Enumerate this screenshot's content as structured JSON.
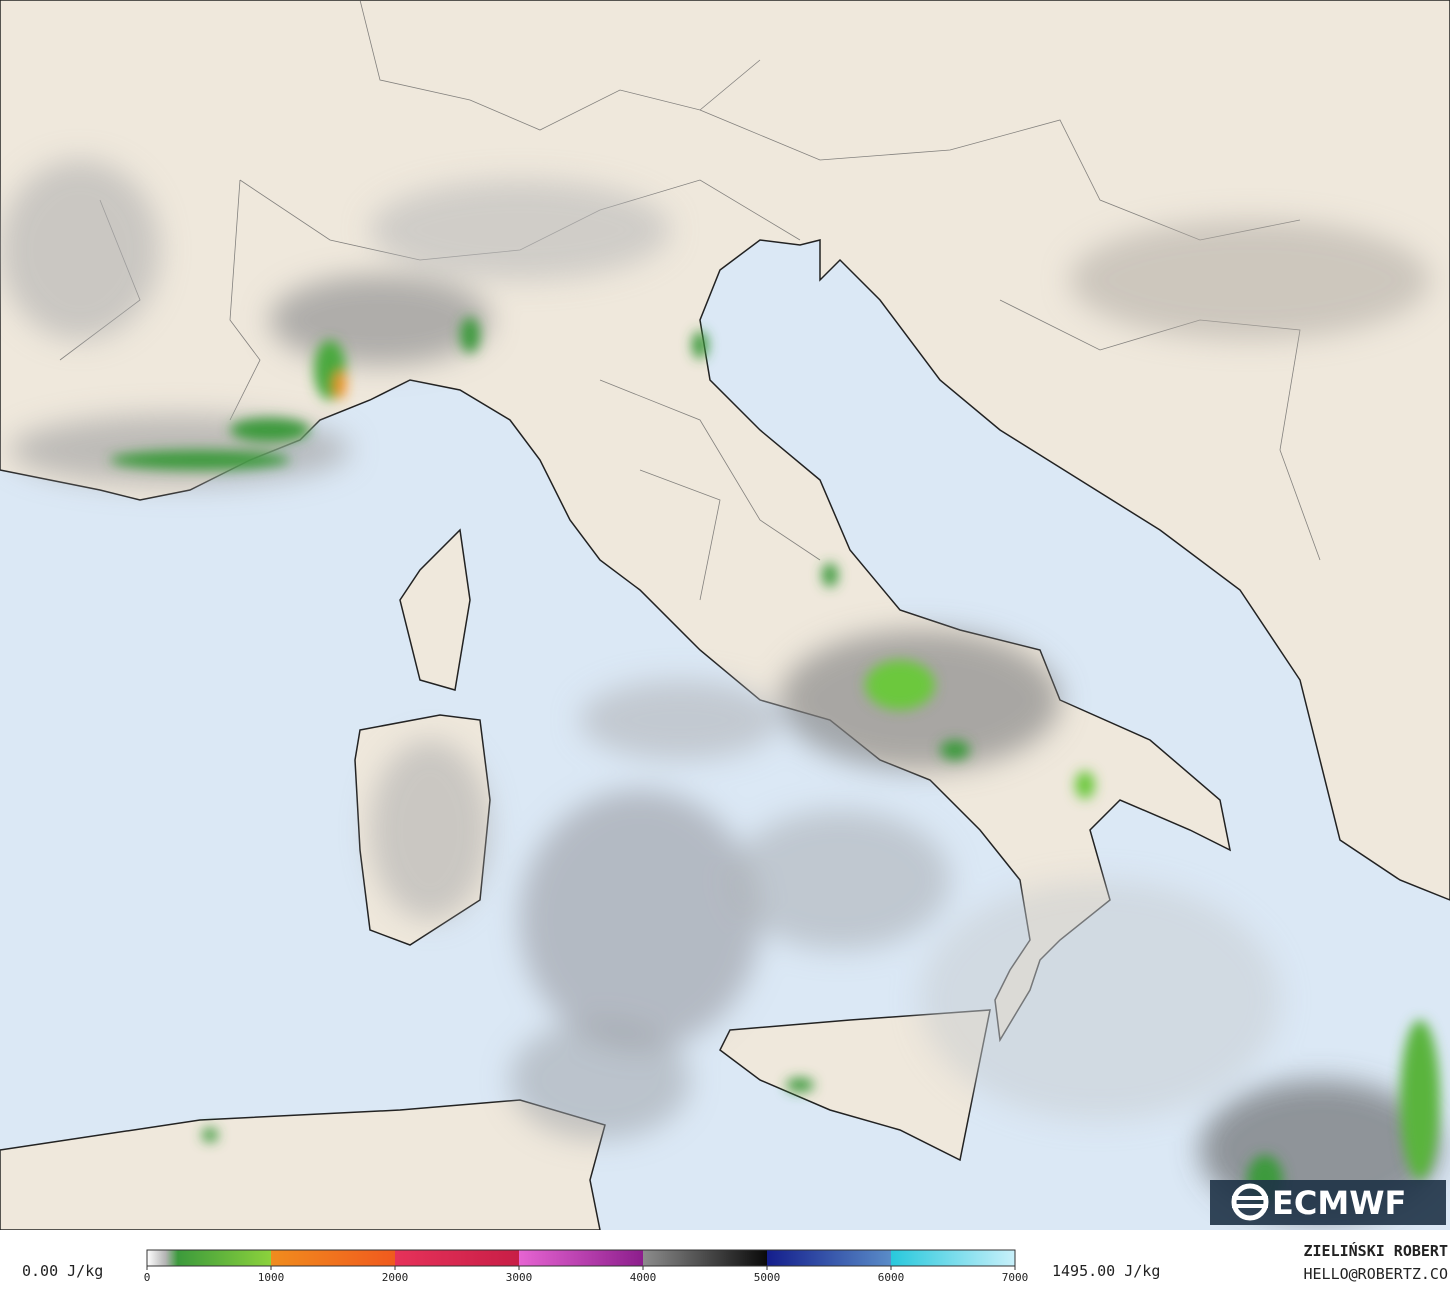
{
  "logo": "ECMWF",
  "legend": {
    "min_label": "0.00 J/kg",
    "max_label": "1495.00 J/kg",
    "range": [
      0,
      7000
    ],
    "ticks": [
      0,
      1000,
      2000,
      3000,
      4000,
      5000,
      6000,
      7000
    ],
    "stops": [
      {
        "value": 0,
        "color": "#ffffff"
      },
      {
        "value": 150,
        "color": "#b4b4b4"
      },
      {
        "value": 250,
        "color": "#3c9a3c"
      },
      {
        "value": 1000,
        "color": "#8cd23c"
      },
      {
        "value": 1000.01,
        "color": "#f08c1e"
      },
      {
        "value": 2000,
        "color": "#f05a1e"
      },
      {
        "value": 2000.01,
        "color": "#e6325a"
      },
      {
        "value": 3000,
        "color": "#c81e46"
      },
      {
        "value": 3000.01,
        "color": "#e664d2"
      },
      {
        "value": 4000,
        "color": "#8c1e8c"
      },
      {
        "value": 4000.01,
        "color": "#8c8c8c"
      },
      {
        "value": 5000,
        "color": "#0a0a0a"
      },
      {
        "value": 5000.01,
        "color": "#141e8c"
      },
      {
        "value": 6000,
        "color": "#5a8cc8"
      },
      {
        "value": 6000.01,
        "color": "#28c8dc"
      },
      {
        "value": 7000,
        "color": "#c8f0fa"
      }
    ]
  },
  "author": {
    "name": "ZIELIŃSKI ROBERT",
    "email": "HELLO@ROBERTZ.CO"
  }
}
